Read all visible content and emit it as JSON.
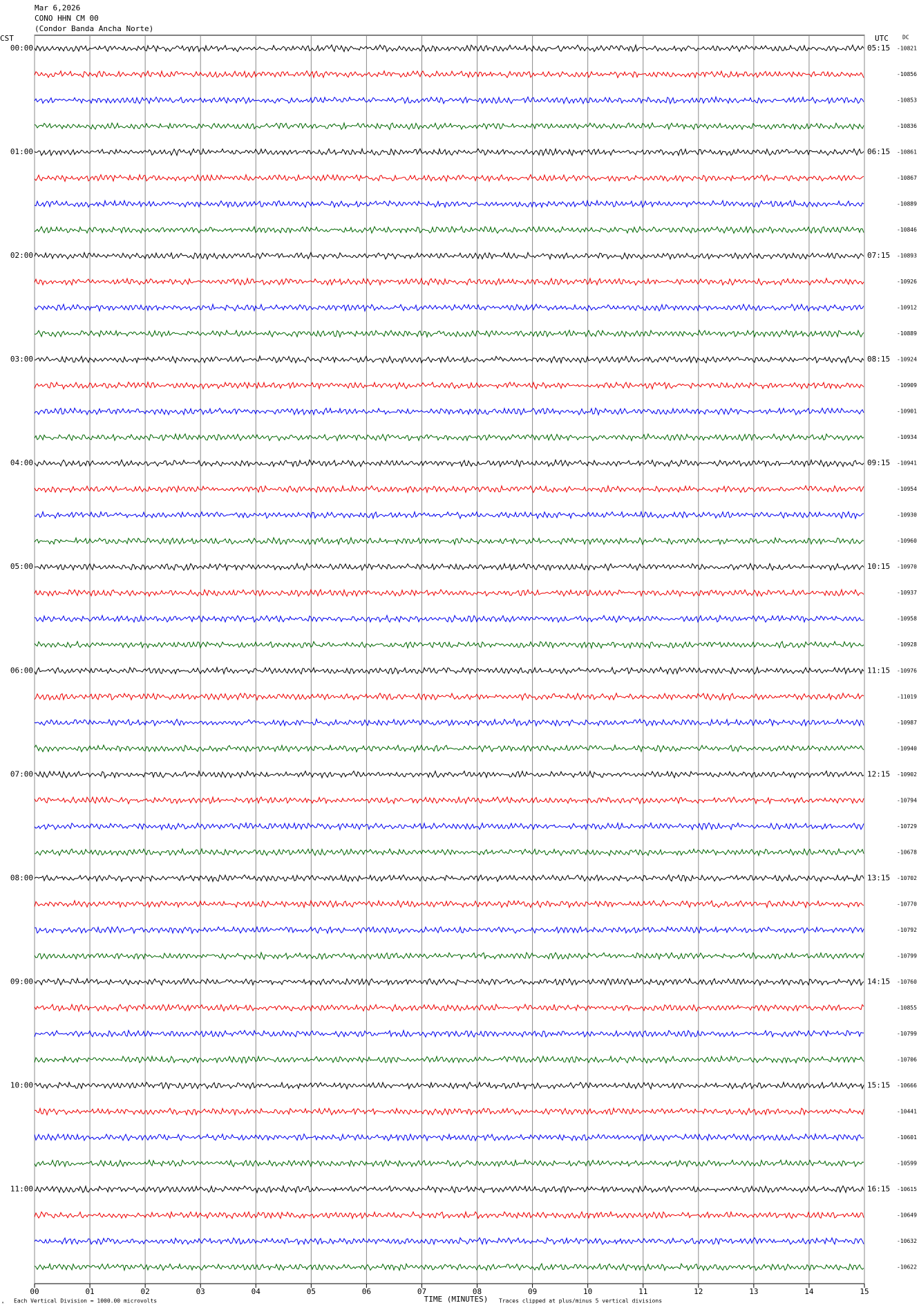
{
  "header": {
    "date": "Mar 6,2026",
    "station": "CONO HHN CM 00",
    "site": "(Condor Banda Ancha Norte)"
  },
  "left_axis_title": "CST",
  "right_axis_title": "UTC",
  "dc_title": "DC",
  "cst_labels": [
    "00:00",
    "01:00",
    "02:00",
    "03:00",
    "04:00",
    "05:00",
    "06:00",
    "07:00",
    "08:00",
    "09:00",
    "10:00",
    "11:00"
  ],
  "utc_labels": [
    "05:15",
    "06:15",
    "07:15",
    "08:15",
    "09:15",
    "10:15",
    "11:15",
    "12:15",
    "13:15",
    "14:15",
    "15:15",
    "16:15"
  ],
  "dc_values": [
    "-10821",
    "-10856",
    "-10853",
    "-10836",
    "-10861",
    "-10867",
    "-10889",
    "-10846",
    "-10893",
    "-10926",
    "-10912",
    "-10889",
    "-10924",
    "-10909",
    "-10901",
    "-10934",
    "-10941",
    "-10954",
    "-10930",
    "-10960",
    "-10970",
    "-10937",
    "-10958",
    "-10928",
    "-10976",
    "-11019",
    "-10987",
    "-10940",
    "-10902",
    "-10794",
    "-10729",
    "-10678",
    "-10702",
    "-10770",
    "-10792",
    "-10799",
    "-10760",
    "-10855",
    "-10799",
    "-10706",
    "-10666",
    "-10441",
    "-10601",
    "-10599",
    "-10615",
    "-10649",
    "-10632",
    "-10622"
  ],
  "x_labels": [
    "00",
    "01",
    "02",
    "03",
    "04",
    "05",
    "06",
    "07",
    "08",
    "09",
    "10",
    "11",
    "12",
    "13",
    "14",
    "15"
  ],
  "x_axis_title": "TIME (MINUTES)",
  "footer": {
    "scale_note": "Each Vertical Division = 1000.00 microvolts",
    "clip_note": "Traces clipped at plus/minus 5 vertical divisions"
  }
}
